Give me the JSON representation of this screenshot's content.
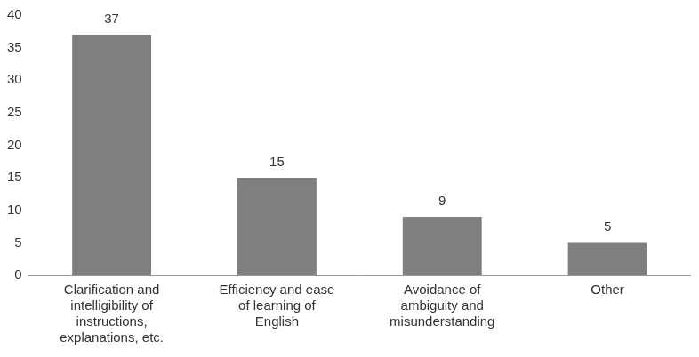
{
  "chart_data": {
    "type": "bar",
    "categories": [
      "Clarification and intelligibility of instructions, explanations, etc.",
      "Efficiency and ease of learning of English",
      "Avoidance of ambiguity and misunderstanding",
      "Other"
    ],
    "values": [
      37,
      15,
      9,
      5
    ],
    "color": "#7f7f7f",
    "ylim": [
      0,
      40
    ],
    "yticks": [
      0,
      5,
      10,
      15,
      20,
      25,
      30,
      35,
      40
    ],
    "grid": false,
    "data_labels": true
  }
}
